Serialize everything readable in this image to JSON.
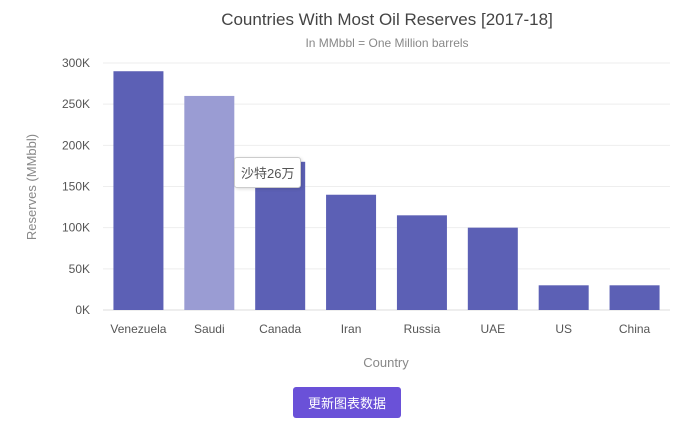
{
  "chart_data": {
    "type": "bar",
    "title": "Countries With Most Oil Reserves [2017-18]",
    "subtitle": "In MMbbl = One Million barrels",
    "xlabel": "Country",
    "ylabel": "Reserves (MMbbl)",
    "categories": [
      "Venezuela",
      "Saudi",
      "Canada",
      "Iran",
      "Russia",
      "UAE",
      "US",
      "China"
    ],
    "values": [
      290,
      260,
      180,
      140,
      115,
      100,
      30,
      30
    ],
    "unit": "K",
    "ylim": [
      0,
      300
    ],
    "yticks": [
      "0K",
      "50K",
      "100K",
      "150K",
      "200K",
      "250K",
      "300K"
    ],
    "grid": true,
    "highlighted": "Saudi",
    "colors": {
      "bar": "#5c60b5",
      "highlight": "#9a9cd3"
    }
  },
  "tooltip": "沙特26万",
  "button": "更新图表数据"
}
